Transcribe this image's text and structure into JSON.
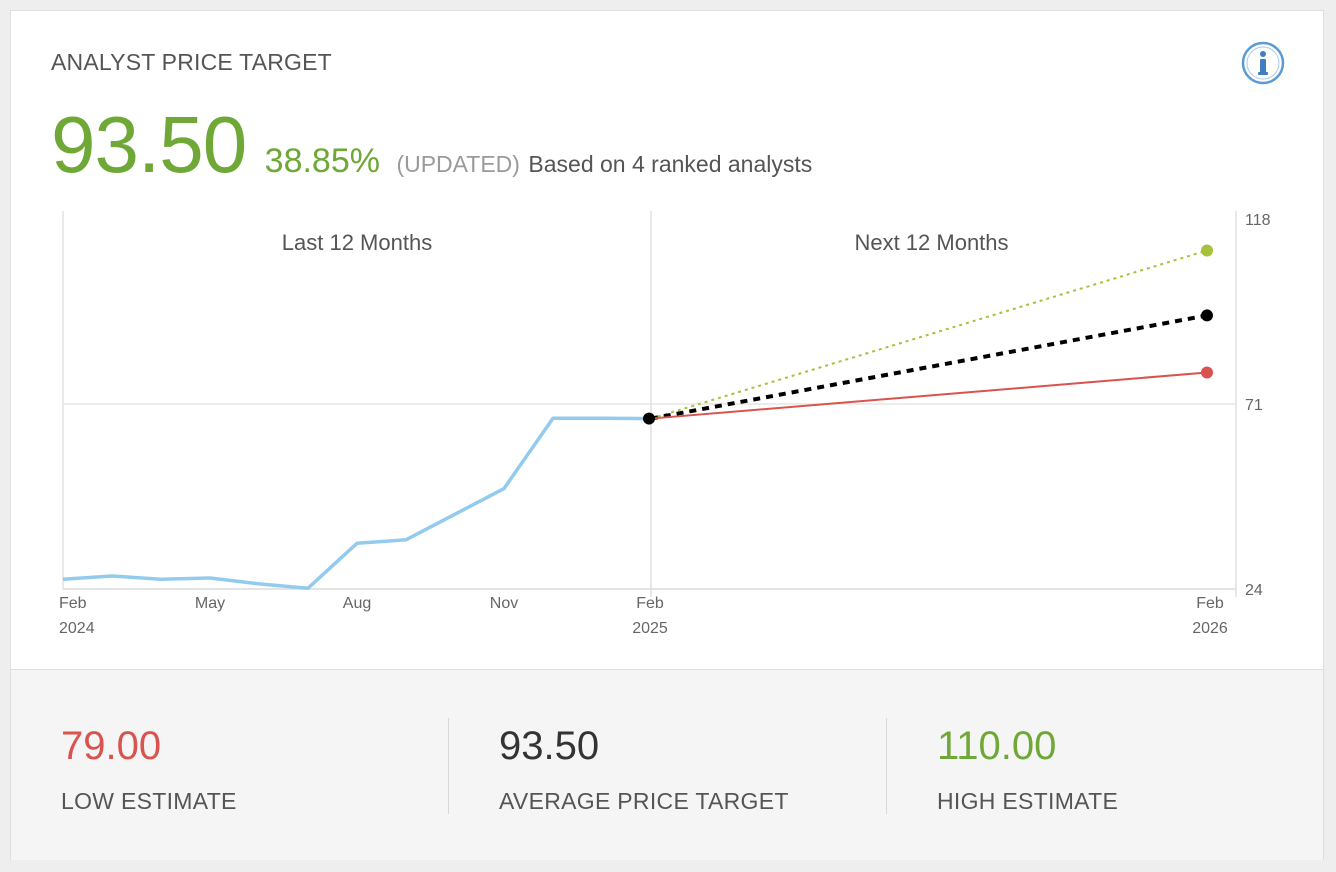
{
  "header": {
    "title": "ANALYST PRICE TARGET",
    "price": "93.50",
    "change_pct": "38.85%",
    "updated_label": "(UPDATED)",
    "based_on": "Based on 4 ranked analysts"
  },
  "icons": {
    "info": "info-icon"
  },
  "colors": {
    "green": "#6fa837",
    "red": "#d9534f",
    "history_line": "#93cbef",
    "high_line": "#a6c23a",
    "average_line": "#000000",
    "low_line": "#d9534f"
  },
  "chart_data": {
    "type": "line",
    "sections": [
      "Last 12 Months",
      "Next 12 Months"
    ],
    "ylim": [
      24,
      118
    ],
    "y_ticks": [
      "118",
      "71",
      "24"
    ],
    "x_ticks": [
      {
        "month": "Feb",
        "year": "2024"
      },
      {
        "month": "May",
        "year": ""
      },
      {
        "month": "Aug",
        "year": ""
      },
      {
        "month": "Nov",
        "year": ""
      },
      {
        "month": "Feb",
        "year": "2025"
      },
      {
        "month": "Feb",
        "year": "2026"
      }
    ],
    "history": {
      "x": [
        0,
        1,
        2,
        3,
        4,
        5,
        6,
        7,
        8,
        9,
        10,
        11,
        12
      ],
      "y": [
        26.5,
        27.3,
        26.5,
        26.8,
        25.3,
        24.2,
        35.6,
        36.5,
        43.0,
        49.5,
        67.4,
        67.4,
        67.3
      ]
    },
    "projections": [
      {
        "name": "High",
        "start": 67.3,
        "end": 110.0
      },
      {
        "name": "Average",
        "start": 67.3,
        "end": 93.5
      },
      {
        "name": "Low",
        "start": 67.3,
        "end": 79.0
      }
    ]
  },
  "footer": {
    "low": {
      "value": "79.00",
      "label": "LOW ESTIMATE"
    },
    "average": {
      "value": "93.50",
      "label": "AVERAGE PRICE TARGET"
    },
    "high": {
      "value": "110.00",
      "label": "HIGH ESTIMATE"
    }
  }
}
